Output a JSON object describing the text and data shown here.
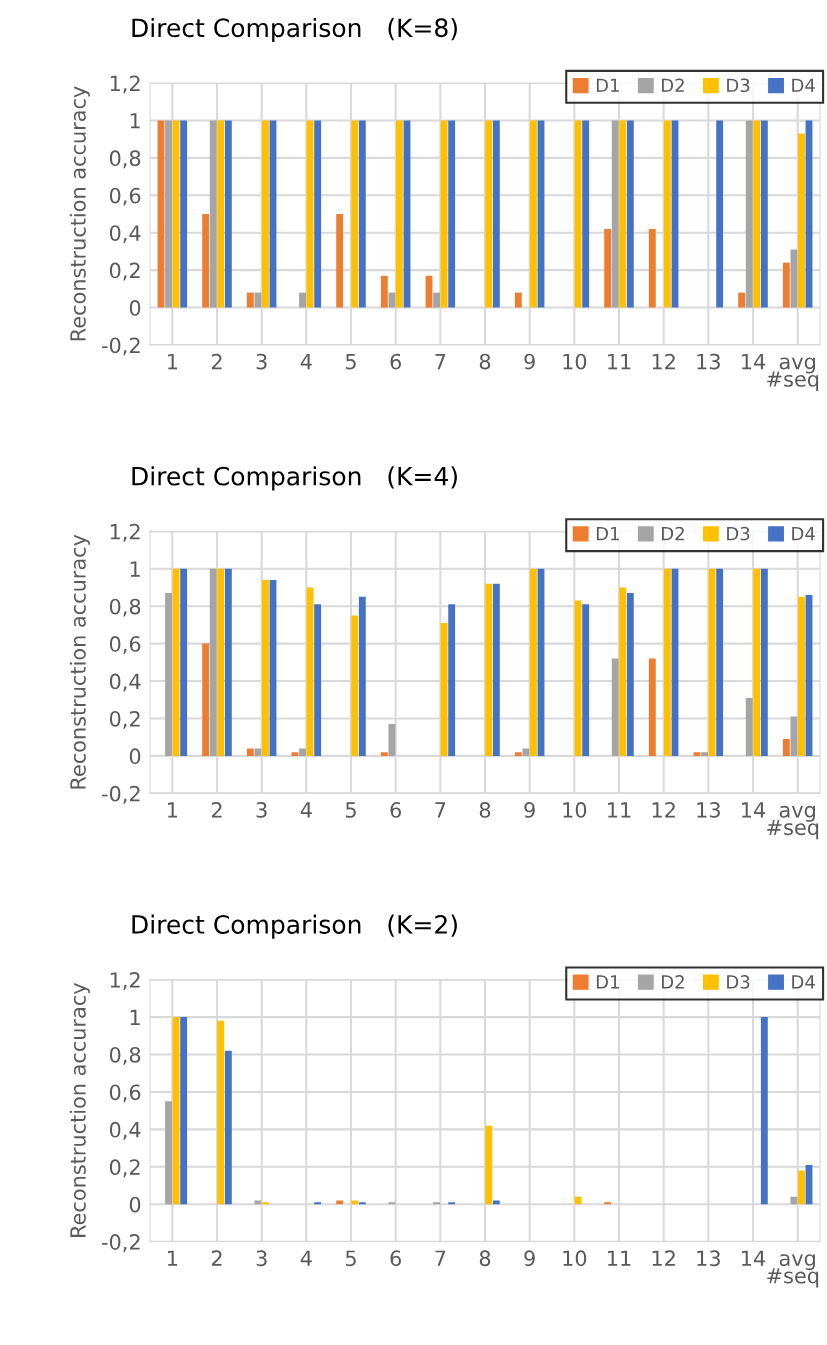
{
  "chart_data": [
    {
      "type": "bar",
      "title": "Direct Comparison   (K=8)",
      "xlabel": "#seq",
      "ylabel": "Reconstruction accuracy",
      "categories": [
        "1",
        "2",
        "3",
        "4",
        "5",
        "6",
        "7",
        "8",
        "9",
        "10",
        "11",
        "12",
        "13",
        "14",
        "avg"
      ],
      "series": [
        {
          "name": "D1",
          "color": "#ed7d31",
          "values": [
            1,
            0.5,
            0.08,
            0,
            0.5,
            0.17,
            0.17,
            0,
            0.08,
            0,
            0.42,
            0.42,
            0,
            0.08,
            0.24
          ]
        },
        {
          "name": "D2",
          "color": "#a5a5a5",
          "values": [
            1,
            1,
            0.08,
            0.08,
            0,
            0.08,
            0.08,
            0,
            0,
            0,
            1,
            0,
            0,
            1,
            0.31
          ]
        },
        {
          "name": "D3",
          "color": "#ffc000",
          "values": [
            1,
            1,
            1,
            1,
            1,
            1,
            1,
            1,
            1,
            1,
            1,
            1,
            0,
            1,
            0.93
          ]
        },
        {
          "name": "D4",
          "color": "#4472c4",
          "values": [
            1,
            1,
            1,
            1,
            1,
            1,
            1,
            1,
            1,
            1,
            1,
            1,
            1,
            1,
            1
          ]
        }
      ],
      "ylim": [
        -0.2,
        1.2
      ],
      "yticks": [
        {
          "value": -0.2,
          "label": "-0,2"
        },
        0,
        {
          "value": 0.2,
          "label": "0,2"
        },
        {
          "value": 0.4,
          "label": "0,4"
        },
        {
          "value": 0.6,
          "label": "0,6"
        },
        {
          "value": 0.8,
          "label": "0,8"
        },
        1,
        {
          "value": 1.2,
          "label": "1,2"
        }
      ],
      "grid": true,
      "legend": "top right"
    },
    {
      "type": "bar",
      "title": "Direct Comparison   (K=4)",
      "xlabel": "#seq",
      "ylabel": "Reconstruction accuracy",
      "categories": [
        "1",
        "2",
        "3",
        "4",
        "5",
        "6",
        "7",
        "8",
        "9",
        "10",
        "11",
        "12",
        "13",
        "14",
        "avg"
      ],
      "series": [
        {
          "name": "D1",
          "color": "#ed7d31",
          "values": [
            0,
            0.6,
            0.04,
            0.02,
            0,
            0.02,
            0,
            0,
            0.02,
            0,
            0,
            0.52,
            0.02,
            0,
            0.09
          ]
        },
        {
          "name": "D2",
          "color": "#a5a5a5",
          "values": [
            0.87,
            1,
            0.04,
            0.04,
            0,
            0.17,
            0,
            0,
            0.04,
            0,
            0.52,
            0,
            0.02,
            0.31,
            0.21
          ]
        },
        {
          "name": "D3",
          "color": "#ffc000",
          "values": [
            1,
            1,
            0.94,
            0.9,
            0.75,
            0,
            0.71,
            0.92,
            1,
            0.83,
            0.9,
            1,
            1,
            1,
            0.85
          ]
        },
        {
          "name": "D4",
          "color": "#4472c4",
          "values": [
            1,
            1,
            0.94,
            0.81,
            0.85,
            0,
            0.81,
            0.92,
            1,
            0.81,
            0.87,
            1,
            1,
            1,
            0.86
          ]
        }
      ],
      "ylim": [
        -0.2,
        1.2
      ],
      "yticks": [
        {
          "value": -0.2,
          "label": "-0,2"
        },
        0,
        {
          "value": 0.2,
          "label": "0,2"
        },
        {
          "value": 0.4,
          "label": "0,4"
        },
        {
          "value": 0.6,
          "label": "0,6"
        },
        {
          "value": 0.8,
          "label": "0,8"
        },
        1,
        {
          "value": 1.2,
          "label": "1,2"
        }
      ],
      "grid": true,
      "legend": "top right"
    },
    {
      "type": "bar",
      "title": "Direct Comparison   (K=2)",
      "xlabel": "#seq",
      "ylabel": "Reconstruction accuracy",
      "categories": [
        "1",
        "2",
        "3",
        "4",
        "5",
        "6",
        "7",
        "8",
        "9",
        "10",
        "11",
        "12",
        "13",
        "14",
        "avg"
      ],
      "series": [
        {
          "name": "D1",
          "color": "#ed7d31",
          "values": [
            0,
            0,
            0,
            0,
            0.02,
            0,
            0,
            0,
            0,
            0,
            0.01,
            0,
            0,
            0,
            0
          ]
        },
        {
          "name": "D2",
          "color": "#a5a5a5",
          "values": [
            0.55,
            0,
            0.02,
            0,
            0,
            0.01,
            0.01,
            0,
            0,
            0,
            0,
            0,
            0,
            0,
            0.04
          ]
        },
        {
          "name": "D3",
          "color": "#ffc000",
          "values": [
            1,
            0.98,
            0.01,
            0,
            0.02,
            0,
            0,
            0.42,
            0,
            0.04,
            0,
            0,
            0,
            0,
            0.18
          ]
        },
        {
          "name": "D4",
          "color": "#4472c4",
          "values": [
            1,
            0.82,
            0,
            0.01,
            0.01,
            0,
            0.01,
            0.02,
            0,
            0,
            0,
            0,
            0,
            1,
            0.21
          ]
        }
      ],
      "ylim": [
        -0.2,
        1.2
      ],
      "yticks": [
        {
          "value": -0.2,
          "label": "-0,2"
        },
        0,
        {
          "value": 0.2,
          "label": "0,2"
        },
        {
          "value": 0.4,
          "label": "0,4"
        },
        {
          "value": 0.6,
          "label": "0,6"
        },
        {
          "value": 0.8,
          "label": "0,8"
        },
        1,
        {
          "value": 1.2,
          "label": "1,2"
        }
      ],
      "grid": true,
      "legend": "top right"
    }
  ]
}
